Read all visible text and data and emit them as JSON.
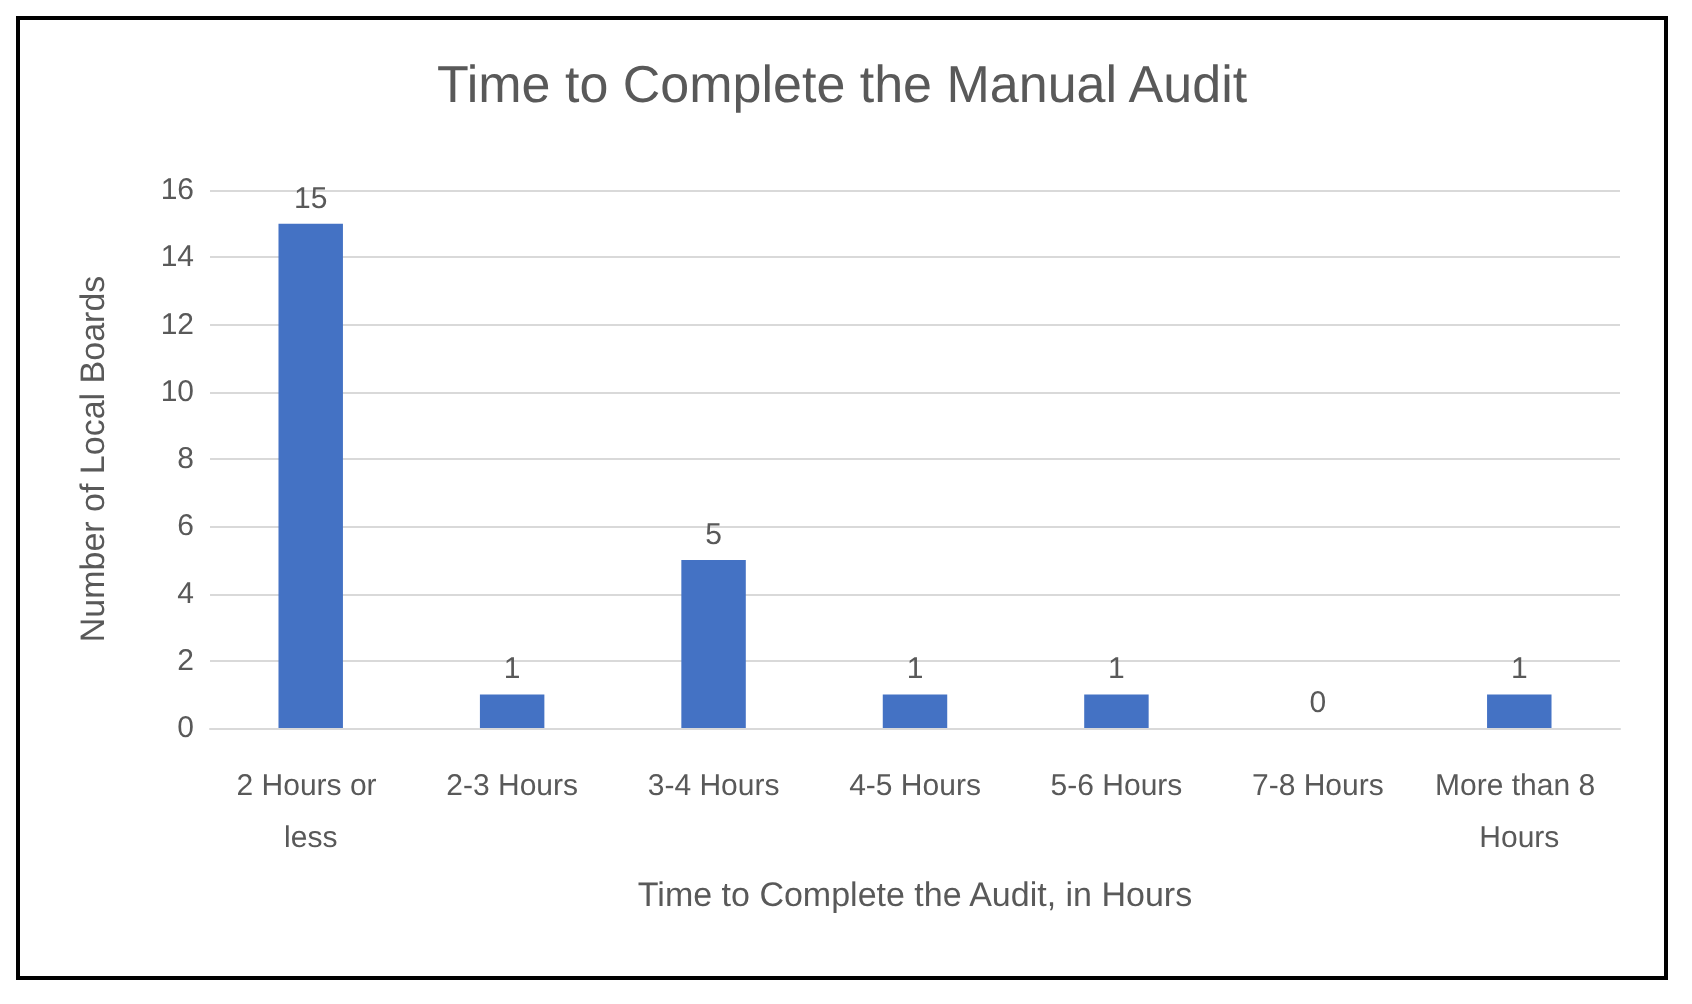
{
  "chart_data": {
    "type": "bar",
    "title": "Time to Complete the Manual Audit",
    "xlabel": "Time to Complete the Audit, in Hours",
    "ylabel": "Number of Local Boards",
    "categories": [
      "2 Hours or less",
      "2-3 Hours",
      "3-4 Hours",
      "4-5 Hours",
      "5-6 Hours",
      "7-8 Hours",
      "More than 8 Hours"
    ],
    "values": [
      15,
      1,
      5,
      1,
      1,
      0,
      1
    ],
    "color": "#4472c4",
    "ylim": [
      0,
      16
    ],
    "yticks": [
      0,
      2,
      4,
      6,
      8,
      10,
      12,
      14,
      16
    ],
    "grid": "y",
    "data_labels": true
  }
}
